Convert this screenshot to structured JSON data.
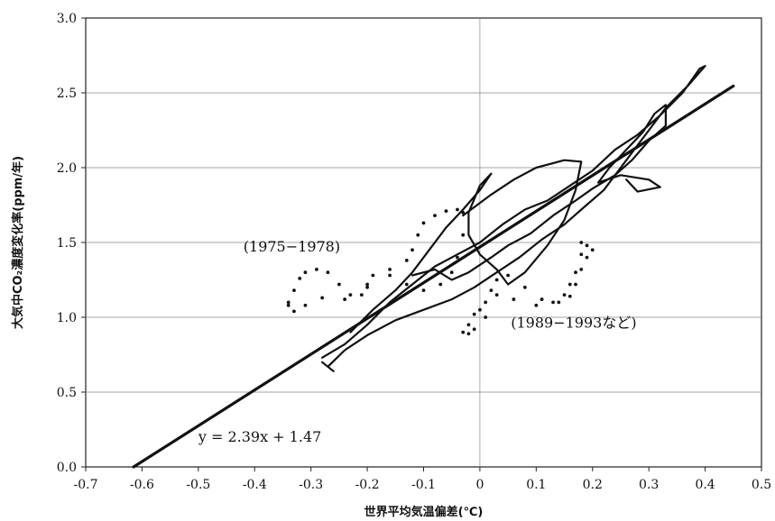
{
  "chart_data": {
    "type": "scatter",
    "title": "",
    "xlabel": "世界平均気温偏差(℃)",
    "ylabel": "大気中CO₂濃度変化率(ppm/年)",
    "xlim": [
      -0.7,
      0.5
    ],
    "ylim": [
      0.0,
      3.0
    ],
    "x_ticks": [
      -0.7,
      -0.6,
      -0.5,
      -0.4,
      -0.3,
      -0.2,
      -0.1,
      0,
      0.1,
      0.2,
      0.3,
      0.4,
      0.5
    ],
    "y_ticks": [
      0.0,
      0.5,
      1.0,
      1.5,
      2.0,
      2.5,
      3.0
    ],
    "x_tick_labels": [
      "-0.7",
      "-0.6",
      "-0.5",
      "-0.4",
      "-0.3",
      "-0.2",
      "-0.1",
      "0",
      "0.1",
      "0.2",
      "0.3",
      "0.4",
      "0.5"
    ],
    "y_tick_labels": [
      "0.0",
      "0.5",
      "1.0",
      "1.5",
      "2.0",
      "2.5",
      "3.0"
    ],
    "grid": true,
    "regression": {
      "equation": "y = 2.39x + 1.47",
      "slope": 2.39,
      "intercept": 1.47,
      "x_range": [
        -0.615,
        0.45
      ]
    },
    "annotations": [
      {
        "text": "(1975−1978)",
        "x": -0.42,
        "y": 1.44
      },
      {
        "text": "(1989−1993など)",
        "x": 0.055,
        "y": 0.93
      }
    ],
    "series": [
      {
        "style": "solid",
        "points": [
          [
            -0.28,
            0.73
          ],
          [
            -0.24,
            0.82
          ],
          [
            -0.2,
            0.95
          ],
          [
            -0.16,
            1.1
          ],
          [
            -0.12,
            1.22
          ],
          [
            -0.08,
            1.34
          ],
          [
            -0.04,
            1.42
          ],
          [
            0.0,
            1.5
          ],
          [
            0.04,
            1.62
          ],
          [
            0.08,
            1.72
          ],
          [
            0.12,
            1.78
          ],
          [
            0.16,
            1.88
          ],
          [
            0.2,
            1.98
          ],
          [
            0.24,
            2.12
          ],
          [
            0.28,
            2.22
          ],
          [
            0.32,
            2.35
          ],
          [
            0.36,
            2.5
          ],
          [
            0.39,
            2.66
          ],
          [
            0.4,
            2.68
          ],
          [
            0.37,
            2.55
          ],
          [
            0.33,
            2.4
          ],
          [
            0.3,
            2.25
          ],
          [
            0.27,
            2.1
          ],
          [
            0.25,
            2.0
          ],
          [
            0.22,
            1.85
          ],
          [
            0.18,
            1.72
          ],
          [
            0.15,
            1.62
          ],
          [
            0.11,
            1.52
          ],
          [
            0.07,
            1.4
          ],
          [
            0.03,
            1.3
          ],
          [
            -0.01,
            1.2
          ],
          [
            -0.05,
            1.12
          ],
          [
            -0.1,
            1.05
          ],
          [
            -0.15,
            0.98
          ],
          [
            -0.2,
            0.88
          ],
          [
            -0.24,
            0.78
          ],
          [
            -0.27,
            0.67
          ],
          [
            -0.26,
            0.64
          ],
          [
            -0.28,
            0.7
          ]
        ]
      },
      {
        "style": "solid",
        "points": [
          [
            -0.23,
            0.9
          ],
          [
            -0.19,
            1.05
          ],
          [
            -0.15,
            1.18
          ],
          [
            -0.12,
            1.3
          ],
          [
            -0.09,
            1.45
          ],
          [
            -0.06,
            1.6
          ],
          [
            -0.03,
            1.72
          ],
          [
            0.0,
            1.85
          ],
          [
            0.02,
            1.96
          ],
          [
            0.0,
            1.88
          ],
          [
            -0.02,
            1.7
          ],
          [
            -0.02,
            1.55
          ],
          [
            0.0,
            1.42
          ],
          [
            0.03,
            1.32
          ],
          [
            0.05,
            1.22
          ],
          [
            0.08,
            1.3
          ],
          [
            0.12,
            1.48
          ],
          [
            0.15,
            1.65
          ],
          [
            0.17,
            1.85
          ],
          [
            0.18,
            2.04
          ],
          [
            0.15,
            2.05
          ],
          [
            0.1,
            2.0
          ],
          [
            0.06,
            1.92
          ],
          [
            0.02,
            1.82
          ],
          [
            -0.03,
            1.68
          ]
        ]
      },
      {
        "style": "solid",
        "points": [
          [
            -0.12,
            1.28
          ],
          [
            -0.08,
            1.32
          ],
          [
            -0.05,
            1.25
          ],
          [
            -0.02,
            1.3
          ],
          [
            0.02,
            1.4
          ],
          [
            0.05,
            1.48
          ],
          [
            0.09,
            1.56
          ],
          [
            0.13,
            1.68
          ],
          [
            0.17,
            1.78
          ],
          [
            0.2,
            1.86
          ],
          [
            0.24,
            1.95
          ],
          [
            0.27,
            2.05
          ],
          [
            0.3,
            2.18
          ],
          [
            0.33,
            2.28
          ],
          [
            0.33,
            2.42
          ],
          [
            0.31,
            2.36
          ],
          [
            0.29,
            2.24
          ],
          [
            0.26,
            2.12
          ],
          [
            0.23,
            2.0
          ],
          [
            0.21,
            1.9
          ],
          [
            0.25,
            1.95
          ],
          [
            0.3,
            1.92
          ],
          [
            0.32,
            1.87
          ],
          [
            0.28,
            1.84
          ],
          [
            0.26,
            1.92
          ]
        ]
      },
      {
        "style": "dotted",
        "points": [
          [
            -0.34,
            1.1
          ],
          [
            -0.33,
            1.18
          ],
          [
            -0.32,
            1.26
          ],
          [
            -0.31,
            1.3
          ],
          [
            -0.29,
            1.32
          ],
          [
            -0.27,
            1.3
          ],
          [
            -0.25,
            1.22
          ],
          [
            -0.23,
            1.15
          ],
          [
            -0.21,
            1.15
          ],
          [
            -0.2,
            1.2
          ],
          [
            -0.19,
            1.28
          ],
          [
            -0.16,
            1.32
          ],
          [
            -0.13,
            1.38
          ],
          [
            -0.12,
            1.45
          ],
          [
            -0.11,
            1.55
          ],
          [
            -0.1,
            1.63
          ],
          [
            -0.08,
            1.68
          ],
          [
            -0.06,
            1.71
          ],
          [
            -0.04,
            1.72
          ],
          [
            -0.03,
            1.7
          ],
          [
            -0.03,
            1.55
          ],
          [
            -0.04,
            1.4
          ],
          [
            -0.05,
            1.3
          ],
          [
            -0.07,
            1.22
          ],
          [
            -0.1,
            1.18
          ],
          [
            -0.13,
            1.22
          ],
          [
            -0.16,
            1.28
          ],
          [
            -0.2,
            1.22
          ],
          [
            -0.24,
            1.12
          ],
          [
            -0.28,
            1.13
          ],
          [
            -0.31,
            1.08
          ],
          [
            -0.33,
            1.04
          ],
          [
            -0.34,
            1.08
          ]
        ]
      },
      {
        "style": "dotted",
        "points": [
          [
            -0.03,
            0.9
          ],
          [
            -0.02,
            0.95
          ],
          [
            -0.01,
            1.02
          ],
          [
            0.0,
            1.05
          ],
          [
            0.01,
            1.1
          ],
          [
            0.02,
            1.18
          ],
          [
            0.03,
            1.25
          ],
          [
            0.05,
            1.28
          ],
          [
            0.08,
            1.2
          ],
          [
            0.11,
            1.12
          ],
          [
            0.13,
            1.1
          ],
          [
            0.15,
            1.15
          ],
          [
            0.16,
            1.22
          ],
          [
            0.17,
            1.3
          ],
          [
            0.18,
            1.42
          ],
          [
            0.18,
            1.5
          ],
          [
            0.19,
            1.48
          ],
          [
            0.2,
            1.45
          ],
          [
            0.19,
            1.4
          ],
          [
            0.18,
            1.32
          ],
          [
            0.17,
            1.22
          ],
          [
            0.16,
            1.14
          ],
          [
            0.14,
            1.1
          ],
          [
            0.1,
            1.08
          ],
          [
            0.06,
            1.12
          ],
          [
            0.03,
            1.15
          ],
          [
            0.01,
            1.0
          ],
          [
            -0.01,
            0.92
          ],
          [
            -0.02,
            0.89
          ]
        ]
      }
    ]
  }
}
